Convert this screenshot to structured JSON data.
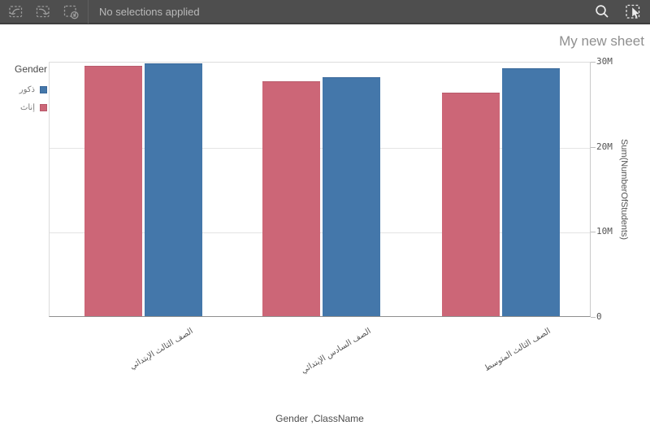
{
  "toolbar": {
    "status_text": "No selections applied",
    "undo_icon": "undo-icon",
    "redo_icon": "redo-icon",
    "clear_icon": "clear-selections-icon",
    "search_icon": "search-icon",
    "selections_tool_icon": "selections-tool-icon"
  },
  "sheet": {
    "title": "My new sheet"
  },
  "chart_data": {
    "type": "bar",
    "title": "",
    "legend_title": "Gender",
    "legend_position": "top-left",
    "grid": true,
    "categories": [
      "الصف الثالث الإبتدائي",
      "الصف السادس الإبتدائي",
      "الصف الثالث المتوسط"
    ],
    "series": [
      {
        "name": "ذكور",
        "color": "#4477aa",
        "border": "#3a689a",
        "values": [
          29.7,
          28.1,
          29.1
        ]
      },
      {
        "name": "إناث",
        "color": "#cc6677",
        "border": "#b85a6b",
        "values": [
          29.4,
          27.6,
          26.3
        ]
      }
    ],
    "unit": "M",
    "xlabel": "Gender ,ClassName",
    "ylabel": "Sum(NumberOfStudents)",
    "ylim": [
      0,
      30
    ],
    "yticks": [
      {
        "value": 0,
        "label": "0"
      },
      {
        "value": 10,
        "label": "10M"
      },
      {
        "value": 20,
        "label": "20M"
      },
      {
        "value": 30,
        "label": "30M"
      }
    ]
  }
}
